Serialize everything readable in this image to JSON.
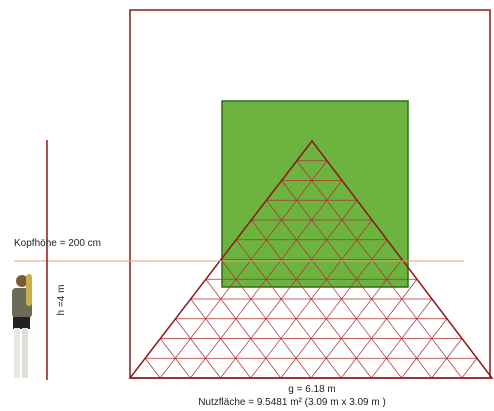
{
  "labels": {
    "head_height": "Kopfhöhe = 200 cm",
    "height": "h =4 m",
    "base": "g = 6.18 m",
    "area": "Nutzfläche = 9.5481 m² (3.09 m x 3.09 m )"
  }
}
